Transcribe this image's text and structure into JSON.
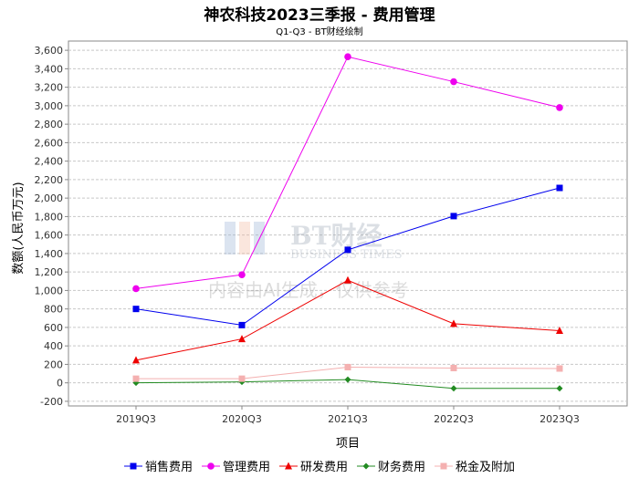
{
  "title": "神农科技2023三季报 - 费用管理",
  "subtitle": "Q1-Q3 - BT财经绘制",
  "watermark": {
    "logo_text": "BT财经",
    "logo_sub": "BUSINESS TIMES",
    "notice": "内容由AI生成，仅供参考"
  },
  "chart_data": {
    "type": "line",
    "xlabel": "项目",
    "ylabel": "数额(人民币万元)",
    "categories": [
      "2019Q3",
      "2020Q3",
      "2021Q3",
      "2022Q3",
      "2023Q3"
    ],
    "ylim": [
      -250,
      3700
    ],
    "yticks": [
      -200,
      0,
      200,
      400,
      600,
      800,
      1000,
      1200,
      1400,
      1600,
      1800,
      2000,
      2200,
      2400,
      2600,
      2800,
      3000,
      3200,
      3400,
      3600
    ],
    "ytick_labels": [
      "-200",
      "0",
      "200",
      "400",
      "600",
      "800",
      "1,000",
      "1,200",
      "1,400",
      "1,600",
      "1,800",
      "2,000",
      "2,200",
      "2,400",
      "2,600",
      "2,800",
      "3,000",
      "3,200",
      "3,400",
      "3,600"
    ],
    "grid": true,
    "legend_position": "bottom",
    "series": [
      {
        "name": "销售费用",
        "values": [
          800,
          625,
          1440,
          1805,
          2110
        ],
        "color": "#0000ee",
        "marker": "square"
      },
      {
        "name": "管理费用",
        "values": [
          1020,
          1170,
          3530,
          3260,
          2980
        ],
        "color": "#ee00ee",
        "marker": "circle"
      },
      {
        "name": "研发费用",
        "values": [
          245,
          475,
          1110,
          640,
          565
        ],
        "color": "#ee0000",
        "marker": "triangle"
      },
      {
        "name": "财务费用",
        "values": [
          0,
          10,
          35,
          -60,
          -60
        ],
        "color": "#228b22",
        "marker": "diamond"
      },
      {
        "name": "税金及附加",
        "values": [
          45,
          45,
          170,
          160,
          155
        ],
        "color": "#f4b0b0",
        "marker": "square"
      }
    ]
  }
}
